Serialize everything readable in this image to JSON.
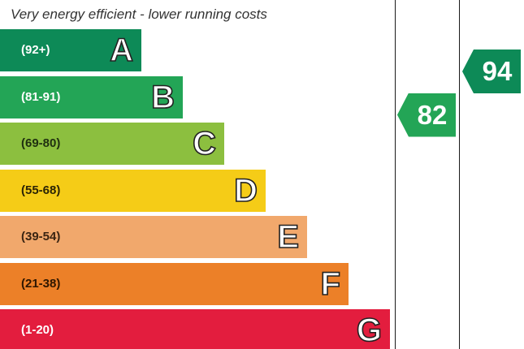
{
  "chart_data": {
    "type": "bar",
    "header": "Very energy efficient - lower running costs",
    "bands": [
      {
        "letter": "A",
        "range": "(92+)",
        "min": 92,
        "max": 100,
        "color": "#0d8a57",
        "range_text_color": "#ffffff"
      },
      {
        "letter": "B",
        "range": "(81-91)",
        "min": 81,
        "max": 91,
        "color": "#23a556",
        "range_text_color": "#ffffff"
      },
      {
        "letter": "C",
        "range": "(69-80)",
        "min": 69,
        "max": 80,
        "color": "#8cbf3f",
        "range_text_color": "#1f2f10"
      },
      {
        "letter": "D",
        "range": "(55-68)",
        "min": 55,
        "max": 68,
        "color": "#f5cc17",
        "range_text_color": "#2b2405"
      },
      {
        "letter": "E",
        "range": "(39-54)",
        "min": 39,
        "max": 54,
        "color": "#f1a86c",
        "range_text_color": "#3a2412"
      },
      {
        "letter": "F",
        "range": "(21-38)",
        "min": 21,
        "max": 38,
        "color": "#ec8028",
        "range_text_color": "#2e1600"
      },
      {
        "letter": "G",
        "range": "(1-20)",
        "min": 1,
        "max": 20,
        "color": "#e31d3e",
        "range_text_color": "#ffffff"
      }
    ],
    "ratings": [
      {
        "value": 82,
        "band": "B",
        "color": "#23a556"
      },
      {
        "value": 94,
        "band": "A",
        "color": "#0d8a57"
      }
    ]
  }
}
